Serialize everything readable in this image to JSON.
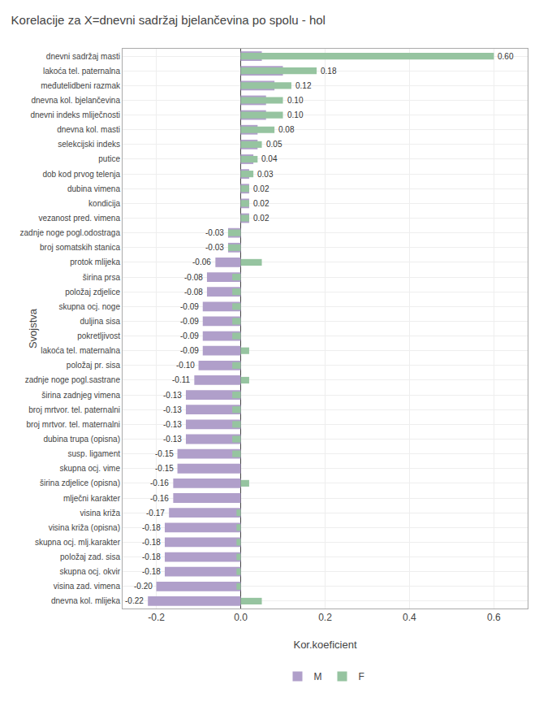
{
  "chart_data": {
    "type": "bar",
    "orientation": "horizontal",
    "title": "Korelacije za X=dnevni sadržaj bjelančevina po spolu - hol",
    "xlabel": "Kor.koeficient",
    "ylabel": "Svojstva",
    "categories": [
      "dnevni sadržaj masti",
      "lakoća tel. paternalna",
      "međutelidbeni razmak",
      "dnevna kol. bjelančevina",
      "dnevni indeks mliječnosti",
      "dnevna kol. masti",
      "selekcijski indeks",
      "putice",
      "dob kod prvog telenja",
      "dubina vimena",
      "kondicija",
      "vezanost pred. vimena",
      "zadnje noge pogl.odostraga",
      "broj somatskih stanica",
      "protok mlijeka",
      "širina prsa",
      "položaj zdjelice",
      "skupna ocj. noge",
      "duljina sisa",
      "pokretljivost",
      "lakoća tel. maternalna",
      "položaj pr. sisa",
      "zadnje noge pogl.sastrane",
      "širina zadnjeg vimena",
      "broj mrtvor. tel. paternalni",
      "broj mrtvor. tel. maternalni",
      "dubina trupa (opisna)",
      "susp. ligament",
      "skupna ocj. vime",
      "širina zdjelice (opisna)",
      "mlječni karakter",
      "visina križa",
      "visina križa (opisna)",
      "skupna ocj. mlj.karakter",
      "položaj zad. sisa",
      "skupna ocj. okvir",
      "visina zad. vimena",
      "dnevna kol. mlijeka"
    ],
    "series": [
      {
        "name": "M",
        "color": "#b09fca",
        "values": [
          0.05,
          0.1,
          0.08,
          0.06,
          0.06,
          0.04,
          0.04,
          0.03,
          0.02,
          0.02,
          0.02,
          0.02,
          -0.03,
          -0.03,
          -0.06,
          -0.08,
          -0.08,
          -0.09,
          -0.09,
          -0.09,
          -0.09,
          -0.1,
          -0.11,
          -0.13,
          -0.13,
          -0.13,
          -0.13,
          -0.15,
          -0.15,
          -0.16,
          -0.16,
          -0.17,
          -0.18,
          -0.18,
          -0.18,
          -0.18,
          -0.2,
          -0.22
        ],
        "value_labels": [
          null,
          null,
          null,
          null,
          null,
          null,
          null,
          null,
          null,
          null,
          null,
          null,
          "-0.03",
          "-0.03",
          "-0.06",
          "-0.08",
          "-0.08",
          "-0.09",
          "-0.09",
          "-0.09",
          "-0.09",
          "-0.10",
          "-0.11",
          "-0.13",
          "-0.13",
          "-0.13",
          "-0.13",
          "-0.15",
          "-0.15",
          "-0.16",
          "-0.16",
          "-0.17",
          "-0.18",
          "-0.18",
          "-0.18",
          "-0.18",
          "-0.20",
          "-0.22"
        ]
      },
      {
        "name": "F",
        "color": "#96c4a0",
        "values": [
          0.6,
          0.18,
          0.12,
          0.1,
          0.1,
          0.08,
          0.05,
          0.04,
          0.03,
          0.02,
          0.02,
          0.02,
          -0.03,
          -0.03,
          0.05,
          -0.02,
          -0.02,
          -0.02,
          -0.02,
          -0.02,
          0.02,
          -0.02,
          0.02,
          -0.02,
          -0.02,
          -0.02,
          -0.02,
          -0.02,
          0.0,
          0.02,
          0.0,
          -0.01,
          -0.01,
          -0.01,
          -0.01,
          -0.01,
          -0.01,
          0.05
        ],
        "value_labels": [
          "0.60",
          "0.18",
          "0.12",
          "0.10",
          "0.10",
          "0.08",
          "0.05",
          "0.04",
          "0.03",
          "0.02",
          "0.02",
          "0.02",
          null,
          null,
          null,
          null,
          null,
          null,
          null,
          null,
          null,
          null,
          null,
          null,
          null,
          null,
          null,
          null,
          null,
          null,
          null,
          null,
          null,
          null,
          null,
          null,
          null,
          null
        ]
      }
    ],
    "xlim": [
      -0.28,
      0.68
    ],
    "xticks": [
      -0.2,
      {
        "value": 0,
        "label": "0.0"
      },
      0.2,
      0.4,
      0.6
    ],
    "grid": true,
    "legend": "bottom",
    "data_labels": true
  }
}
